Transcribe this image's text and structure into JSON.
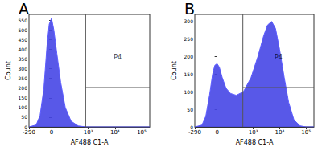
{
  "chart_data": [
    {
      "type": "area",
      "title": "A",
      "x_label": "AF488 C1-A",
      "y_label": "Count",
      "color": "#4646e6",
      "grid": false,
      "x": [
        -290,
        -148,
        -98,
        -60,
        -34,
        -17,
        0,
        17,
        40,
        74,
        126,
        220,
        420,
        820,
        200000
      ],
      "values": [
        0,
        10,
        60,
        200,
        420,
        530,
        560,
        500,
        380,
        230,
        100,
        30,
        5,
        0,
        0
      ],
      "xlim": [
        -290,
        200000
      ],
      "xticks": [
        -290,
        0,
        {
          "value": 1000,
          "label": "10³"
        },
        {
          "value": 10000,
          "label": "10⁴"
        },
        {
          "value": 100000,
          "label": "10⁵"
        }
      ],
      "ylim": [
        0,
        580
      ],
      "yticks": [
        0,
        50,
        100,
        150,
        200,
        250,
        300,
        350,
        400,
        450,
        500,
        550
      ],
      "gate": {
        "label": "P4",
        "xlim": [
          800,
          200000
        ]
      }
    },
    {
      "type": "area",
      "title": "B",
      "x_label": "AF488 C1-A",
      "y_label": "Count",
      "color": "#4646e6",
      "grid": false,
      "x": [
        -290,
        -148,
        -98,
        -60,
        -34,
        -17,
        0,
        17,
        40,
        74,
        126,
        220,
        420,
        820,
        1500,
        2500,
        3500,
        5000,
        7000,
        10000,
        15000,
        22000,
        35000,
        60000,
        100000,
        200000
      ],
      "values": [
        0,
        5,
        30,
        90,
        150,
        175,
        180,
        170,
        140,
        110,
        95,
        90,
        100,
        140,
        200,
        260,
        290,
        300,
        280,
        220,
        140,
        70,
        20,
        3,
        0,
        0
      ],
      "xlim": [
        -290,
        200000
      ],
      "xticks": [
        -290,
        0,
        {
          "value": 1000,
          "label": "10³"
        },
        {
          "value": 10000,
          "label": "10⁴"
        },
        {
          "value": 100000,
          "label": "10⁵"
        }
      ],
      "ylim": [
        0,
        320
      ],
      "yticks": [
        0,
        50,
        100,
        150,
        200,
        250,
        300
      ],
      "gate": {
        "label": "P4",
        "xlim": [
          400,
          200000
        ]
      }
    }
  ]
}
